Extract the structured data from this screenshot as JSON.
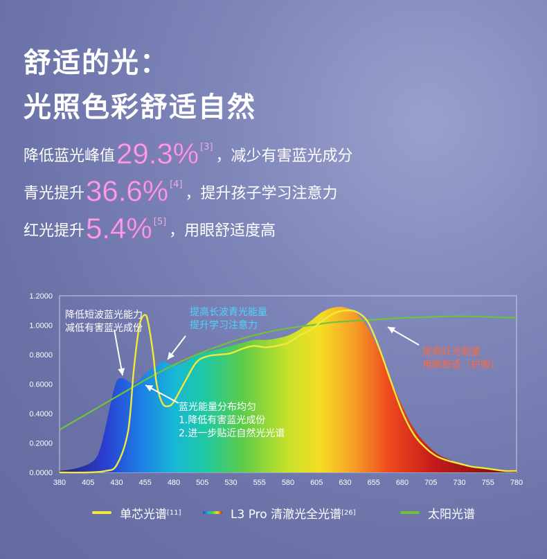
{
  "header": {
    "title_line1": "舒适的光：",
    "title_line2": "光照色彩舒适自然"
  },
  "claims": [
    {
      "prefix": "降低蓝光峰值",
      "value": "29.3%",
      "ref": "[3]",
      "suffix": "，减少有害蓝光成分"
    },
    {
      "prefix": "青光提升",
      "value": "36.6%",
      "ref": "[4]",
      "suffix": "，提升孩子学习注意力"
    },
    {
      "prefix": "红光提升",
      "value": "5.4%",
      "ref": "[5]",
      "suffix": "，用眼舒适度高"
    }
  ],
  "annotations": {
    "blue_peak": [
      "降低短波蓝光能力",
      "减低有害蓝光成份"
    ],
    "cyan": [
      "提高长波青光能量",
      "提升学习注意力"
    ],
    "red": [
      "提高红光能量",
      "用眼舒适（护眼）"
    ],
    "even": [
      "蓝光能量分布均匀",
      "1.降低有害蓝光成份",
      "2.进一步贴近自然光光谱"
    ]
  },
  "colors": {
    "single_chip": "#f2ea3a",
    "sunlight": "#6fc23a",
    "blue_anno": "#ffffff",
    "cyan_anno": "#4fd2ff",
    "red_anno": "#ff6a3a",
    "claim_value": "#f2a9e3"
  },
  "legend": [
    {
      "label": "单芯光谱",
      "ref": "[11]"
    },
    {
      "label": "L3 Pro 清澈光全光谱",
      "ref": "[26]"
    },
    {
      "label": "太阳光谱",
      "ref": ""
    }
  ],
  "chart_data": {
    "type": "area",
    "x_ticks": [
      380,
      405,
      430,
      455,
      480,
      505,
      530,
      555,
      580,
      605,
      630,
      655,
      680,
      705,
      730,
      755,
      780
    ],
    "y_ticks": [
      "0.0000",
      "0.2000",
      "0.4000",
      "0.6000",
      "0.8000",
      "1.0000",
      "1.2000"
    ],
    "xlim": [
      380,
      780
    ],
    "ylim": [
      0,
      1.2
    ],
    "grid": false,
    "legend_position": "bottom",
    "series": [
      {
        "name": "L3 Pro 清澈光全光谱",
        "style": "spectrum-filled-area",
        "x": [
          380,
          390,
          400,
          410,
          415,
          420,
          425,
          430,
          435,
          440,
          445,
          450,
          455,
          460,
          465,
          470,
          475,
          480,
          490,
          500,
          510,
          520,
          530,
          540,
          550,
          560,
          570,
          580,
          590,
          600,
          610,
          620,
          630,
          640,
          650,
          660,
          670,
          680,
          690,
          700,
          710,
          720,
          730,
          740,
          750,
          760,
          770,
          780
        ],
        "y": [
          0.01,
          0.02,
          0.04,
          0.08,
          0.15,
          0.3,
          0.48,
          0.62,
          0.64,
          0.62,
          0.6,
          0.63,
          0.67,
          0.7,
          0.72,
          0.76,
          0.74,
          0.73,
          0.75,
          0.8,
          0.82,
          0.84,
          0.86,
          0.88,
          0.9,
          0.9,
          0.91,
          0.93,
          0.97,
          1.03,
          1.09,
          1.12,
          1.12,
          1.08,
          0.98,
          0.82,
          0.63,
          0.45,
          0.3,
          0.2,
          0.13,
          0.09,
          0.06,
          0.04,
          0.03,
          0.02,
          0.01,
          0.01
        ]
      },
      {
        "name": "单芯光谱",
        "style": "line",
        "x": [
          380,
          405,
          420,
          430,
          440,
          445,
          450,
          455,
          458,
          462,
          465,
          470,
          475,
          480,
          490,
          500,
          510,
          520,
          530,
          540,
          550,
          560,
          570,
          580,
          590,
          600,
          610,
          620,
          630,
          640,
          650,
          660,
          670,
          680,
          690,
          700,
          710,
          720,
          730,
          740,
          750,
          760,
          770,
          780
        ],
        "y": [
          0,
          0,
          0.01,
          0.05,
          0.28,
          0.7,
          1.0,
          1.07,
          1.0,
          0.8,
          0.6,
          0.47,
          0.45,
          0.48,
          0.62,
          0.75,
          0.79,
          0.8,
          0.81,
          0.84,
          0.86,
          0.85,
          0.86,
          0.88,
          0.93,
          0.97,
          1.03,
          1.08,
          1.1,
          1.09,
          1.02,
          0.84,
          0.62,
          0.41,
          0.26,
          0.17,
          0.11,
          0.08,
          0.06,
          0.04,
          0.03,
          0.02,
          0.01,
          0.01
        ]
      },
      {
        "name": "太阳光谱",
        "style": "line",
        "x": [
          380,
          400,
          420,
          440,
          460,
          480,
          500,
          520,
          540,
          560,
          580,
          600,
          620,
          640,
          660,
          680,
          700,
          720,
          740,
          760,
          780
        ],
        "y": [
          0.29,
          0.38,
          0.47,
          0.56,
          0.65,
          0.73,
          0.8,
          0.86,
          0.91,
          0.95,
          0.98,
          1.0,
          1.02,
          1.03,
          1.04,
          1.05,
          1.055,
          1.06,
          1.06,
          1.055,
          1.05
        ]
      }
    ]
  }
}
